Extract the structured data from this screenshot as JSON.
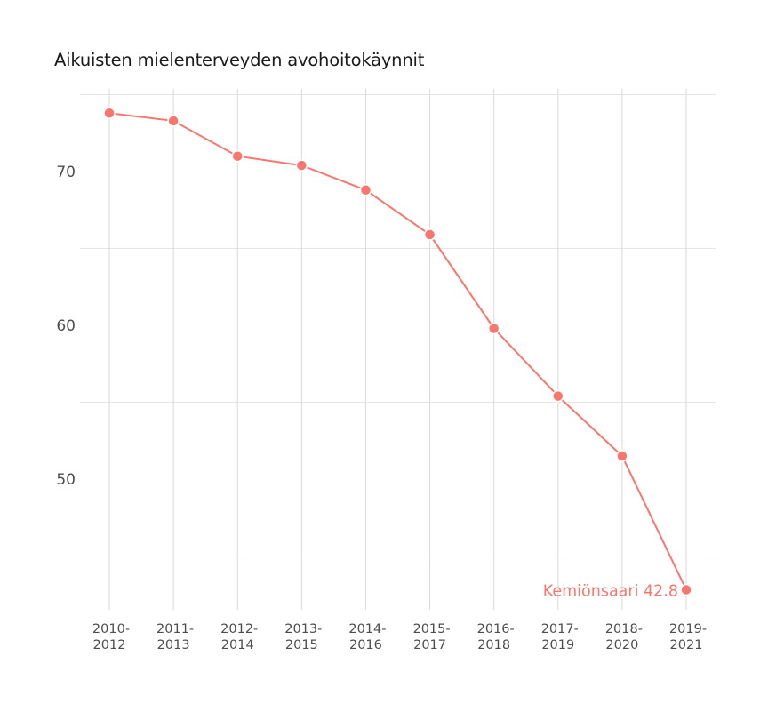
{
  "title": "Aikuisten mielenterveyden avohoitokäynnit",
  "chart_data": {
    "type": "line",
    "title": "Aikuisten mielenterveyden avohoitokäynnit",
    "xlabel": "",
    "ylabel": "",
    "categories": [
      "2010-2012",
      "2011-2013",
      "2012-2014",
      "2013-2015",
      "2014-2016",
      "2015-2017",
      "2016-2018",
      "2017-2019",
      "2018-2020",
      "2019-2021"
    ],
    "category_lines": [
      [
        "2010-",
        "2012"
      ],
      [
        "2011-",
        "2013"
      ],
      [
        "2012-",
        "2014"
      ],
      [
        "2013-",
        "2015"
      ],
      [
        "2014-",
        "2016"
      ],
      [
        "2015-",
        "2017"
      ],
      [
        "2016-",
        "2018"
      ],
      [
        "2017-",
        "2019"
      ],
      [
        "2018-",
        "2020"
      ],
      [
        "2019-",
        "2021"
      ]
    ],
    "series": [
      {
        "name": "Kemiönsaari",
        "color": "#f8766d",
        "values": [
          73.8,
          73.3,
          71.0,
          70.4,
          68.8,
          65.9,
          59.8,
          55.4,
          51.5,
          42.8
        ]
      }
    ],
    "y_ticks": [
      50,
      60,
      70
    ],
    "y_tick_labels": [
      "50",
      "60",
      "70"
    ],
    "ylim": [
      41.3,
      75.3
    ],
    "grid": true,
    "legend": "none",
    "end_label": "Kemiönsaari 42.8"
  },
  "colors": {
    "series": "#f8766d",
    "grid": "#e5e5e5",
    "text": "#4d4d4d",
    "title": "#1a1a1a"
  }
}
